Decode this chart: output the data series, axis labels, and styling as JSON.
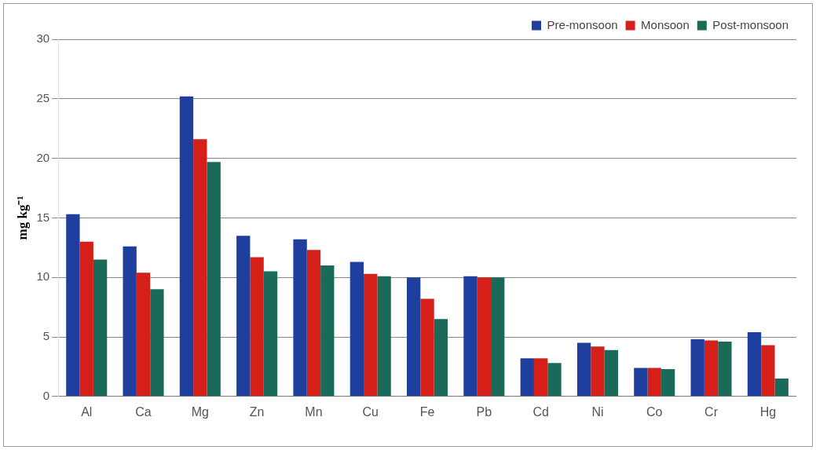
{
  "chart_data": {
    "type": "bar",
    "ylabel": "mg kg⁻¹",
    "categories": [
      "Al",
      "Ca",
      "Mg",
      "Zn",
      "Mn",
      "Cu",
      "Fe",
      "Pb",
      "Cd",
      "Ni",
      "Co",
      "Cr",
      "Hg"
    ],
    "series": [
      {
        "name": "Pre-monsoon",
        "color": "#1f3f9f",
        "values": [
          15.3,
          12.6,
          25.2,
          13.5,
          13.2,
          11.3,
          10.0,
          10.1,
          3.2,
          4.5,
          2.4,
          4.8,
          5.4
        ]
      },
      {
        "name": "Monsoon",
        "color": "#d42018",
        "values": [
          13.0,
          10.4,
          21.6,
          11.7,
          12.3,
          10.3,
          8.2,
          10.0,
          3.2,
          4.2,
          2.4,
          4.7,
          4.3
        ]
      },
      {
        "name": "Post-monsoon",
        "color": "#1a6a5a",
        "values": [
          11.5,
          9.0,
          19.7,
          10.5,
          11.0,
          10.1,
          6.5,
          10.0,
          2.8,
          3.9,
          2.3,
          4.6,
          1.5
        ]
      }
    ],
    "ylim": [
      0,
      30
    ],
    "yticks": [
      0,
      5,
      10,
      15,
      20,
      25,
      30
    ],
    "grid": "y",
    "legend": "top right"
  }
}
